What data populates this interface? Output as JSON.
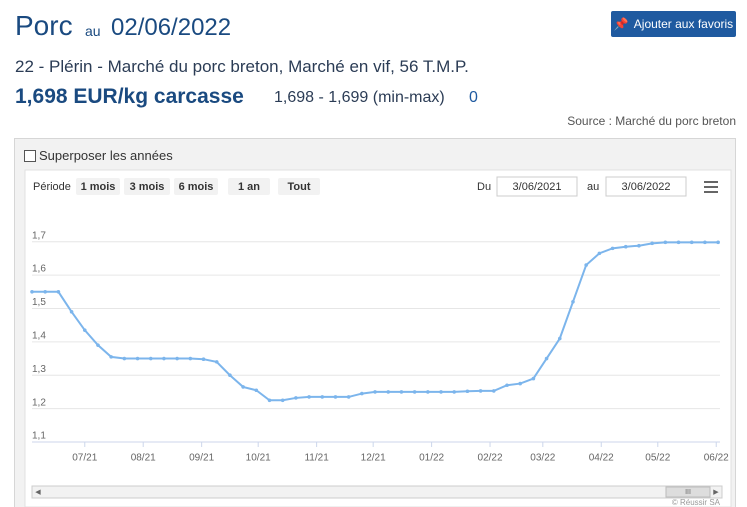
{
  "header": {
    "title": "Porc",
    "au": "au",
    "date": "02/06/2022",
    "button": "Ajouter aux favoris"
  },
  "subtitle": "22 - Plérin - Marché du porc breton, Marché en vif, 56 T.M.P.",
  "price": {
    "main": "1,698 EUR/kg carcasse",
    "range": "1,698 - 1,699 (min-max)",
    "change": "0"
  },
  "source": "Source : Marché du porc breton",
  "toolbar": {
    "overlay": "Superposer les années",
    "period_label": "Période",
    "periods": [
      "1 mois",
      "3 mois",
      "6 mois",
      "1 an",
      "Tout"
    ],
    "from_label": "Du",
    "from": "3/06/2021",
    "to_label": "au",
    "to": "3/06/2022"
  },
  "credit": "© Réussir SA",
  "chart_data": {
    "type": "line",
    "color": "#7cb5ec",
    "x": [
      0,
      7,
      14,
      21,
      28,
      35,
      42,
      49,
      56,
      63,
      70,
      77,
      84,
      91,
      98,
      105,
      112,
      119,
      126,
      133,
      140,
      147,
      154,
      161,
      168,
      175,
      182,
      189,
      196,
      203,
      210,
      217,
      224,
      231,
      238,
      245,
      252,
      259,
      266,
      273,
      280,
      287,
      294,
      301,
      308,
      315,
      322,
      329,
      336,
      343,
      350,
      357,
      364
    ],
    "values": [
      1.55,
      1.55,
      1.55,
      1.49,
      1.435,
      1.39,
      1.355,
      1.35,
      1.35,
      1.35,
      1.35,
      1.35,
      1.35,
      1.348,
      1.34,
      1.3,
      1.265,
      1.255,
      1.225,
      1.225,
      1.232,
      1.235,
      1.235,
      1.235,
      1.235,
      1.245,
      1.25,
      1.25,
      1.25,
      1.25,
      1.25,
      1.25,
      1.25,
      1.252,
      1.253,
      1.253,
      1.27,
      1.275,
      1.29,
      1.35,
      1.41,
      1.52,
      1.63,
      1.665,
      1.68,
      1.685,
      1.688,
      1.695,
      1.698,
      1.698,
      1.698,
      1.698,
      1.698
    ],
    "xlim": [
      0,
      365
    ],
    "xticks": [
      {
        "value": 28,
        "label": "07/21"
      },
      {
        "value": 59,
        "label": "08/21"
      },
      {
        "value": 90,
        "label": "09/21"
      },
      {
        "value": 120,
        "label": "10/21"
      },
      {
        "value": 151,
        "label": "11/21"
      },
      {
        "value": 181,
        "label": "12/21"
      },
      {
        "value": 212,
        "label": "01/22"
      },
      {
        "value": 243,
        "label": "02/22"
      },
      {
        "value": 271,
        "label": "03/22"
      },
      {
        "value": 302,
        "label": "04/22"
      },
      {
        "value": 332,
        "label": "05/22"
      },
      {
        "value": 363,
        "label": "06/22"
      }
    ],
    "ylim": [
      1.1,
      1.75
    ],
    "yticks": [
      {
        "value": 1.1,
        "label": "1,1"
      },
      {
        "value": 1.2,
        "label": "1,2"
      },
      {
        "value": 1.3,
        "label": "1,3"
      },
      {
        "value": 1.4,
        "label": "1,4"
      },
      {
        "value": 1.5,
        "label": "1,5"
      },
      {
        "value": 1.6,
        "label": "1,6"
      },
      {
        "value": 1.7,
        "label": "1,7"
      }
    ],
    "grid": true
  }
}
